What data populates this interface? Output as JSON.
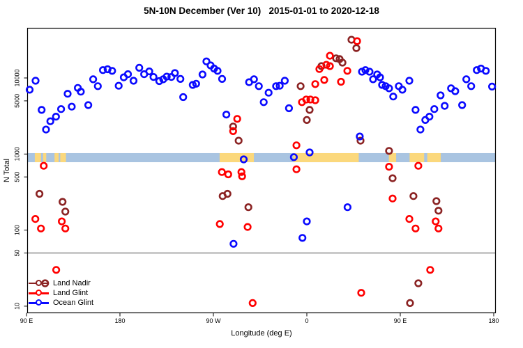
{
  "title": "5N-10N December (Ver 10)   2015-01-01 to 2020-12-18",
  "chart_data": {
    "type": "scatter",
    "title": "5N-10N December (Ver 10)   2015-01-01 to 2020-12-18",
    "xlabel": "Longitude (deg E)",
    "ylabel": "N Total",
    "y_scale": "log",
    "ylim": [
      8,
      47000
    ],
    "x_axis_note": "Longitude axis spans 450 deg eastward from 90E across the dateline back to 180; t = degrees east of 0 (values > 180 are western hemisphere)",
    "x_ticks": [
      {
        "t": 90,
        "label": "90 E"
      },
      {
        "t": 180,
        "label": "180"
      },
      {
        "t": 270,
        "label": "90 W"
      },
      {
        "t": 360,
        "label": "0"
      },
      {
        "t": 450,
        "label": "90 E"
      },
      {
        "t": 540,
        "label": "180"
      }
    ],
    "y_ticks": [
      10,
      50,
      100,
      500,
      1000,
      5000,
      10000
    ],
    "reference_line_n": 50,
    "surface_band": {
      "description": "land/ocean strip along 5N-10N",
      "n_range": [
        781,
        1028
      ],
      "ocean_color": "#a9c4e1",
      "land_color": "#fbd87c",
      "land_segments_t": [
        [
          98,
          104
        ],
        [
          106,
          109
        ],
        [
          117,
          121
        ],
        [
          122.5,
          128
        ],
        [
          276,
          309
        ],
        [
          347,
          410
        ],
        [
          439,
          446
        ],
        [
          459,
          473
        ],
        [
          476,
          489
        ]
      ]
    },
    "legend_position": "bottom-left",
    "series": [
      {
        "name": "Land Nadir",
        "color": "#8b2323",
        "points": [
          [
            102.5,
            300
          ],
          [
            124.7,
            235
          ],
          [
            127.4,
            175
          ],
          [
            289,
            2300
          ],
          [
            294.3,
            1500
          ],
          [
            278.9,
            280
          ],
          [
            283.6,
            300
          ],
          [
            303.7,
            200
          ],
          [
            354,
            7800
          ],
          [
            362.7,
            3800
          ],
          [
            360,
            2800
          ],
          [
            374.1,
            14300
          ],
          [
            388.2,
            18100
          ],
          [
            391.6,
            17700
          ],
          [
            394.3,
            15900
          ],
          [
            403,
            31800
          ],
          [
            407.7,
            24700
          ],
          [
            411.7,
            1500
          ],
          [
            439.2,
            1100
          ],
          [
            442.6,
            480
          ],
          [
            462.7,
            280
          ],
          [
            484.8,
            240
          ],
          [
            486.8,
            180
          ],
          [
            467.4,
            20
          ],
          [
            459.4,
            11
          ],
          [
            107.9,
            20
          ]
        ]
      },
      {
        "name": "Land Glint",
        "color": "#ff0000",
        "points": [
          [
            106.6,
            700
          ],
          [
            98.5,
            140
          ],
          [
            103.9,
            105
          ],
          [
            124,
            130
          ],
          [
            127.4,
            105
          ],
          [
            118.6,
            30
          ],
          [
            278.2,
            580
          ],
          [
            284.3,
            540
          ],
          [
            297,
            580
          ],
          [
            297.7,
            510
          ],
          [
            293,
            2900
          ],
          [
            289,
            2000
          ],
          [
            307.8,
            11
          ],
          [
            350,
            630
          ],
          [
            355.3,
            4800
          ],
          [
            359.4,
            5200
          ],
          [
            363.4,
            5200
          ],
          [
            368.1,
            5100
          ],
          [
            368.1,
            8300
          ],
          [
            376.8,
            9400
          ],
          [
            392.9,
            8900
          ],
          [
            350,
            1300
          ],
          [
            372.1,
            13100
          ],
          [
            378.8,
            14900
          ],
          [
            382.2,
            14300
          ],
          [
            382.2,
            19600
          ],
          [
            399,
            12400
          ],
          [
            408.4,
            30500
          ],
          [
            442.6,
            260
          ],
          [
            439.2,
            680
          ],
          [
            467.4,
            700
          ],
          [
            458.7,
            140
          ],
          [
            464.7,
            105
          ],
          [
            484.1,
            130
          ],
          [
            486.8,
            105
          ],
          [
            412.4,
            15
          ],
          [
            478.8,
            30
          ],
          [
            276.2,
            120
          ],
          [
            303,
            110
          ]
        ]
      },
      {
        "name": "Ocean Glint",
        "color": "#0a0aff",
        "points": [
          [
            93,
            7000
          ],
          [
            98.7,
            9200
          ],
          [
            104.6,
            3800
          ],
          [
            108.8,
            2100
          ],
          [
            113,
            2700
          ],
          [
            118.4,
            3100
          ],
          [
            123.3,
            3900
          ],
          [
            129.6,
            6200
          ],
          [
            133.6,
            4200
          ],
          [
            139.4,
            7400
          ],
          [
            142.3,
            6600
          ],
          [
            149.5,
            4400
          ],
          [
            154.2,
            9600
          ],
          [
            158.7,
            7800
          ],
          [
            163.6,
            12700
          ],
          [
            168.1,
            13000
          ],
          [
            172.5,
            12400
          ],
          [
            178.8,
            7900
          ],
          [
            183.7,
            10200
          ],
          [
            187.7,
            11200
          ],
          [
            193.1,
            9200
          ],
          [
            198.6,
            13600
          ],
          [
            203.3,
            11200
          ],
          [
            208.3,
            12200
          ],
          [
            212.3,
            10300
          ],
          [
            217.9,
            9100
          ],
          [
            221.7,
            9600
          ],
          [
            225.1,
            10400
          ],
          [
            229.5,
            10300
          ],
          [
            232.9,
            11600
          ],
          [
            238.2,
            9700
          ],
          [
            240.9,
            5600
          ],
          [
            250.1,
            8100
          ],
          [
            253.4,
            8400
          ],
          [
            259.5,
            11100
          ],
          [
            263.3,
            16500
          ],
          [
            267.3,
            14600
          ],
          [
            270.7,
            13300
          ],
          [
            274,
            12400
          ],
          [
            278.4,
            9700
          ],
          [
            282.5,
            3300
          ],
          [
            289.4,
            66
          ],
          [
            299.2,
            850
          ],
          [
            304.4,
            8800
          ],
          [
            309.1,
            9600
          ],
          [
            313.8,
            7800
          ],
          [
            318.5,
            4800
          ],
          [
            323.2,
            6400
          ],
          [
            330.4,
            7800
          ],
          [
            333.9,
            7900
          ],
          [
            338.8,
            9200
          ],
          [
            342.8,
            4000
          ],
          [
            347.5,
            910
          ],
          [
            355.8,
            79
          ],
          [
            360,
            130
          ],
          [
            362.7,
            1050
          ],
          [
            399.2,
            200
          ],
          [
            411,
            1700
          ],
          [
            413.1,
            12100
          ],
          [
            416.4,
            12700
          ],
          [
            420.4,
            12100
          ],
          [
            423.8,
            9600
          ],
          [
            427.8,
            11100
          ],
          [
            430.5,
            10200
          ],
          [
            432.5,
            8100
          ],
          [
            435.9,
            7800
          ],
          [
            439.2,
            7300
          ],
          [
            443.2,
            5700
          ],
          [
            448.6,
            7800
          ],
          [
            452,
            7000
          ],
          [
            458.7,
            9200
          ],
          [
            464.7,
            3800
          ],
          [
            469.4,
            2100
          ],
          [
            474.1,
            2800
          ],
          [
            478.1,
            3100
          ],
          [
            482.8,
            3900
          ],
          [
            488.8,
            5900
          ],
          [
            492.8,
            4300
          ],
          [
            498.9,
            7300
          ],
          [
            502.9,
            6700
          ],
          [
            509.6,
            4400
          ],
          [
            513.6,
            9600
          ],
          [
            518.3,
            7800
          ],
          [
            523.7,
            12700
          ],
          [
            527.7,
            13300
          ],
          [
            532.4,
            12400
          ],
          [
            538.4,
            7700
          ]
        ]
      }
    ]
  }
}
